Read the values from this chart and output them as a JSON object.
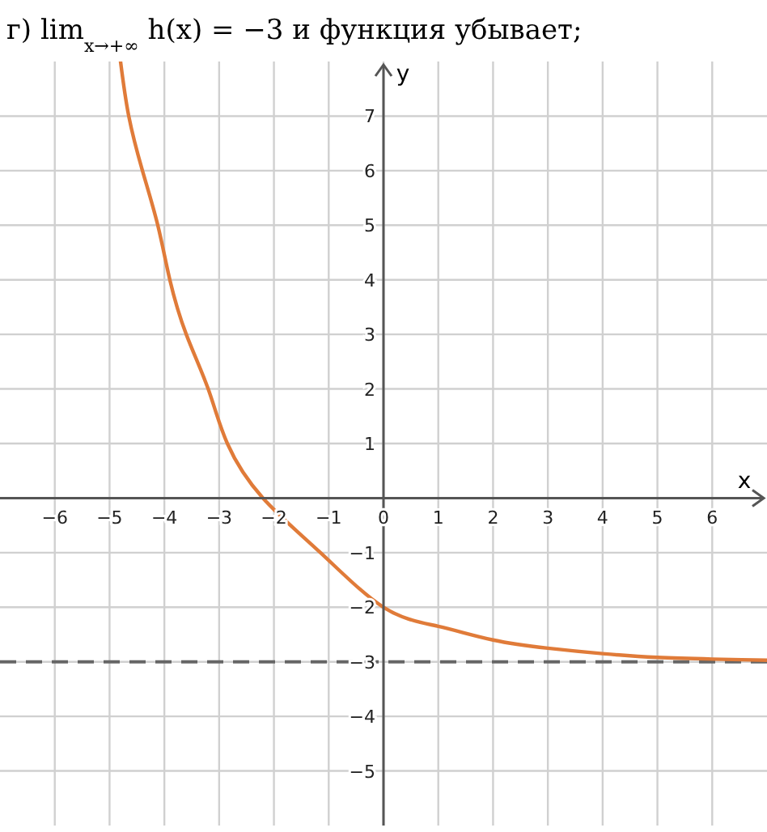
{
  "chart_data": {
    "type": "line",
    "title": "г) lim$_{x→+∞}$ h(x) = −3 и функция убывает;",
    "xlabel": "x",
    "ylabel": "y",
    "x": [
      -4.8,
      -4.65,
      -4.4,
      -4.12,
      -3.9,
      -3.6,
      -3.2,
      -2.85,
      -2.2,
      -1.15,
      0,
      1,
      2,
      3,
      4,
      5,
      6,
      7
    ],
    "series": [
      {
        "color": "#e07b39",
        "values": [
          8,
          7,
          6,
          5,
          4,
          3,
          2,
          1,
          0,
          -1,
          -2,
          -2.35,
          -2.6,
          -2.75,
          -2.85,
          -2.92,
          -2.95,
          -2.97
        ]
      }
    ],
    "xlim": [
      -7,
      7
    ],
    "ylim": [
      -6,
      8
    ],
    "xticks": [
      -6,
      -5,
      -4,
      -3,
      -2,
      -1,
      0,
      1,
      2,
      3,
      4,
      5,
      6
    ],
    "yticks": [
      -5,
      -4,
      -3,
      -2,
      -1,
      1,
      2,
      3,
      4,
      5,
      6,
      7
    ],
    "ref_lines": [
      {
        "axis": "y",
        "value": -3,
        "color": "#666666",
        "line_style": "dashed"
      }
    ],
    "grid": true,
    "marker": "none",
    "line_style": "solid"
  }
}
